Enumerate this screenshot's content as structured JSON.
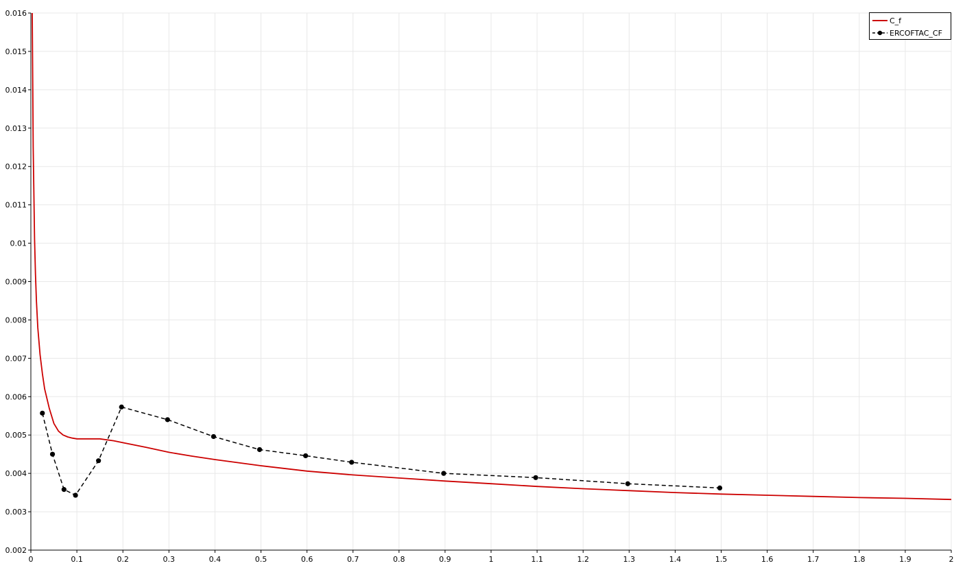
{
  "chart_data": {
    "type": "line",
    "xlim": [
      0,
      2
    ],
    "ylim": [
      0.002,
      0.016
    ],
    "grid": true,
    "legend_position": "top-right",
    "x_ticks": [
      "0",
      "0.1",
      "0.2",
      "0.3",
      "0.4",
      "0.5",
      "0.6",
      "0.7",
      "0.8",
      "0.9",
      "1",
      "1.1",
      "1.2",
      "1.3",
      "1.4",
      "1.5",
      "1.6",
      "1.7",
      "1.8",
      "1.9",
      "2"
    ],
    "y_ticks": [
      "0.002",
      "0.003",
      "0.004",
      "0.005",
      "0.006",
      "0.007",
      "0.008",
      "0.009",
      "0.01",
      "0.011",
      "0.012",
      "0.013",
      "0.014",
      "0.015",
      "0.016"
    ],
    "series": [
      {
        "name": "C_f",
        "color": "#cc0000",
        "style": "solid",
        "markers": false,
        "x": [
          0.003,
          0.005,
          0.008,
          0.01,
          0.012,
          0.015,
          0.02,
          0.025,
          0.03,
          0.04,
          0.05,
          0.06,
          0.07,
          0.08,
          0.09,
          0.1,
          0.12,
          0.15,
          0.18,
          0.2,
          0.25,
          0.3,
          0.35,
          0.4,
          0.5,
          0.6,
          0.7,
          0.8,
          0.9,
          1.0,
          1.1,
          1.2,
          1.3,
          1.4,
          1.5,
          1.6,
          1.7,
          1.8,
          1.9,
          2.0
        ],
        "y": [
          0.016,
          0.0125,
          0.0101,
          0.0092,
          0.0085,
          0.0078,
          0.0071,
          0.0066,
          0.0062,
          0.0057,
          0.0053,
          0.0051,
          0.005,
          0.00495,
          0.00492,
          0.0049,
          0.0049,
          0.0049,
          0.00485,
          0.0048,
          0.00468,
          0.00455,
          0.00445,
          0.00436,
          0.0042,
          0.00406,
          0.00396,
          0.00388,
          0.0038,
          0.00373,
          0.00366,
          0.0036,
          0.00355,
          0.0035,
          0.00346,
          0.00343,
          0.0034,
          0.00337,
          0.00335,
          0.00332
        ]
      },
      {
        "name": "ERCOFTAC_CF",
        "color": "#000000",
        "style": "dashed",
        "markers": true,
        "x": [
          0.025,
          0.047,
          0.072,
          0.097,
          0.147,
          0.197,
          0.297,
          0.397,
          0.497,
          0.597,
          0.697,
          0.897,
          1.097,
          1.297,
          1.497
        ],
        "y": [
          0.00557,
          0.0045,
          0.00358,
          0.00343,
          0.00433,
          0.00573,
          0.0054,
          0.00496,
          0.00462,
          0.00446,
          0.00429,
          0.004,
          0.00389,
          0.00373,
          0.00362
        ]
      }
    ]
  }
}
